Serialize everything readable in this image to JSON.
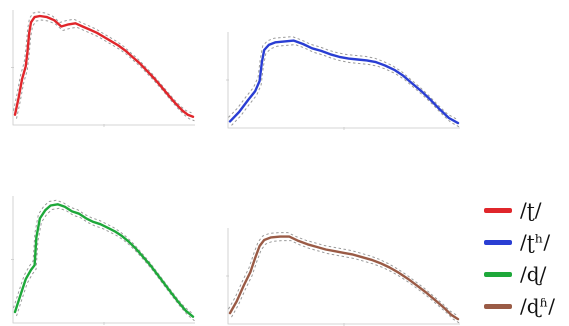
{
  "chart_data": [
    {
      "type": "line",
      "series": [
        {
          "name": "/ʈ/",
          "color": "#e0262b",
          "x": [
            0,
            0.02,
            0.04,
            0.06,
            0.07,
            0.08,
            0.09,
            0.11,
            0.14,
            0.18,
            0.22,
            0.26,
            0.3,
            0.34,
            0.38,
            0.42,
            0.46,
            0.5,
            0.54,
            0.58,
            0.62,
            0.66,
            0.7,
            0.74,
            0.78,
            0.82,
            0.86,
            0.9,
            0.94,
            0.97,
            1.0
          ],
          "y": [
            0.06,
            0.22,
            0.4,
            0.52,
            0.66,
            0.84,
            0.94,
            0.99,
            1.0,
            0.99,
            0.96,
            0.9,
            0.92,
            0.93,
            0.9,
            0.87,
            0.84,
            0.8,
            0.76,
            0.72,
            0.67,
            0.61,
            0.55,
            0.48,
            0.41,
            0.33,
            0.25,
            0.17,
            0.1,
            0.06,
            0.04
          ]
        }
      ]
    },
    {
      "type": "line",
      "series": [
        {
          "name": "/ʈʰ/",
          "color": "#2a3ed3",
          "x": [
            0,
            0.04,
            0.08,
            0.11,
            0.13,
            0.14,
            0.15,
            0.17,
            0.2,
            0.24,
            0.28,
            0.32,
            0.36,
            0.4,
            0.44,
            0.48,
            0.52,
            0.56,
            0.6,
            0.64,
            0.68,
            0.72,
            0.76,
            0.8,
            0.84,
            0.88,
            0.92,
            0.96,
            1.0
          ],
          "y": [
            0.03,
            0.14,
            0.28,
            0.38,
            0.5,
            0.72,
            0.86,
            0.92,
            0.95,
            0.96,
            0.97,
            0.93,
            0.88,
            0.85,
            0.81,
            0.78,
            0.76,
            0.75,
            0.74,
            0.72,
            0.68,
            0.63,
            0.56,
            0.47,
            0.38,
            0.28,
            0.17,
            0.07,
            0.01
          ]
        }
      ]
    },
    {
      "type": "line",
      "series": [
        {
          "name": "/ɖ/",
          "color": "#1ea83a",
          "x": [
            0,
            0.03,
            0.06,
            0.09,
            0.11,
            0.12,
            0.14,
            0.17,
            0.2,
            0.24,
            0.28,
            0.32,
            0.36,
            0.4,
            0.44,
            0.48,
            0.52,
            0.56,
            0.6,
            0.64,
            0.68,
            0.72,
            0.76,
            0.8,
            0.84,
            0.88,
            0.92,
            0.96,
            1.0
          ],
          "y": [
            0.06,
            0.2,
            0.34,
            0.42,
            0.46,
            0.7,
            0.86,
            0.93,
            0.97,
            0.98,
            0.96,
            0.92,
            0.9,
            0.86,
            0.83,
            0.81,
            0.78,
            0.75,
            0.71,
            0.66,
            0.6,
            0.53,
            0.46,
            0.38,
            0.3,
            0.22,
            0.14,
            0.07,
            0.02
          ]
        }
      ]
    },
    {
      "type": "line",
      "series": [
        {
          "name": "/ɖʱ/",
          "color": "#9a5b46",
          "x": [
            0,
            0.03,
            0.06,
            0.09,
            0.11,
            0.13,
            0.15,
            0.18,
            0.22,
            0.26,
            0.3,
            0.34,
            0.38,
            0.42,
            0.46,
            0.5,
            0.54,
            0.58,
            0.62,
            0.66,
            0.7,
            0.74,
            0.78,
            0.82,
            0.86,
            0.9,
            0.94,
            0.97,
            1.0
          ],
          "y": [
            0.08,
            0.22,
            0.4,
            0.56,
            0.72,
            0.86,
            0.93,
            0.96,
            0.97,
            0.97,
            0.92,
            0.88,
            0.85,
            0.82,
            0.8,
            0.78,
            0.76,
            0.73,
            0.7,
            0.66,
            0.61,
            0.55,
            0.48,
            0.4,
            0.32,
            0.23,
            0.14,
            0.06,
            0.01
          ]
        }
      ]
    }
  ],
  "legend": {
    "items": [
      {
        "label": "/ʈ/",
        "color": "#e0262b"
      },
      {
        "label": "/ʈʰ/",
        "color": "#2a3ed3"
      },
      {
        "label": "/ɖ/",
        "color": "#1ea83a"
      },
      {
        "label": "/ɖʱ/",
        "color": "#9a5b46"
      }
    ]
  }
}
